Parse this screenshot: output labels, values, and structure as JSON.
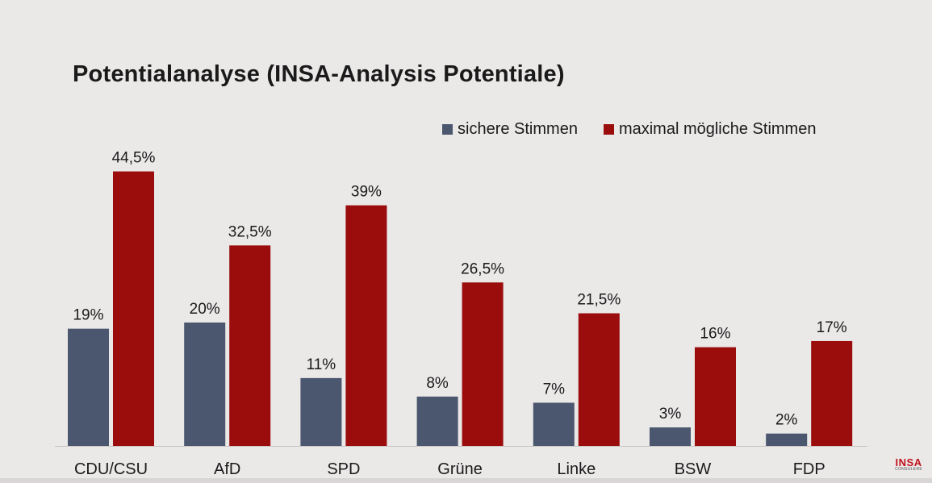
{
  "chart_data": {
    "type": "bar",
    "title": "Potentialanalyse (INSA-Analysis Potentiale)",
    "categories": [
      "CDU/CSU",
      "AfD",
      "SPD",
      "Grüne",
      "Linke",
      "BSW",
      "FDP"
    ],
    "series": [
      {
        "name": "sichere Stimmen",
        "color": "#4a576e",
        "values": [
          19,
          20,
          11,
          8,
          7,
          3,
          2
        ],
        "labels": [
          "19%",
          "20%",
          "11%",
          "8%",
          "7%",
          "3%",
          "2%"
        ]
      },
      {
        "name": "maximal mögliche Stimmen",
        "color": "#9b0c0c",
        "values": [
          44.5,
          32.5,
          39,
          26.5,
          21.5,
          16,
          17
        ],
        "labels": [
          "44,5%",
          "32,5%",
          "39%",
          "26,5%",
          "21,5%",
          "16%",
          "17%"
        ]
      }
    ],
    "xlabel": "",
    "ylabel": "",
    "ylim": [
      0,
      45
    ],
    "grid": false,
    "legend_position": "top-right"
  },
  "logo": {
    "main": "INSA",
    "sub": "CONSULERE",
    "accent_color": "#c0121b"
  }
}
